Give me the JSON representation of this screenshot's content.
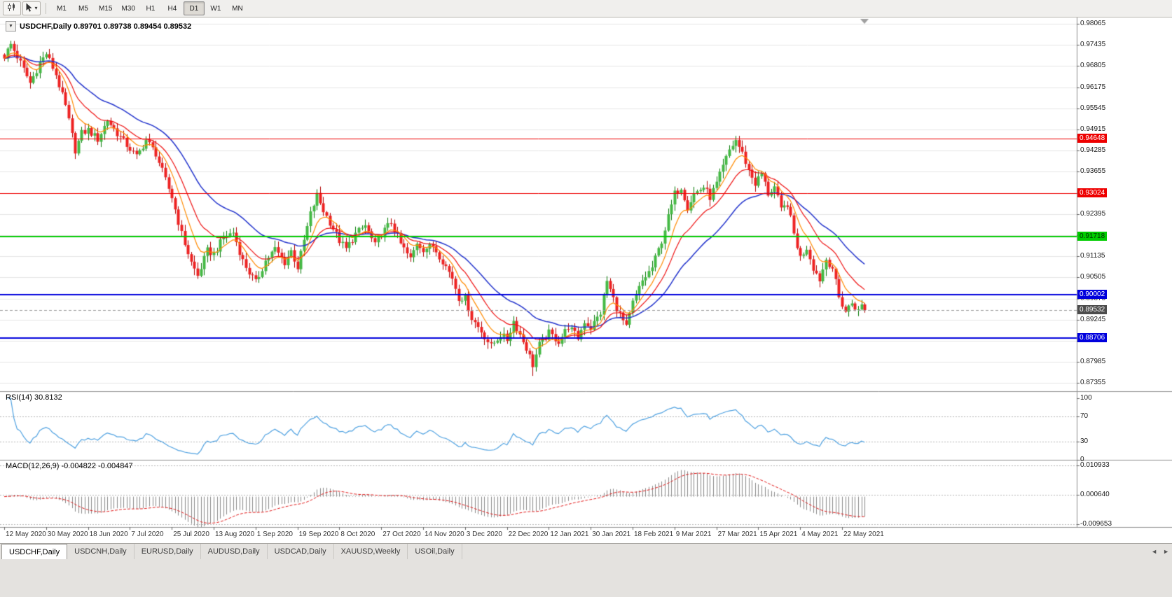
{
  "toolbar": {
    "timeframes": [
      "M1",
      "M5",
      "M15",
      "M30",
      "H1",
      "H4",
      "D1",
      "W1",
      "MN"
    ],
    "active_timeframe": "D1"
  },
  "chart": {
    "quote_text": "USDCHF,Daily 0.89701 0.89738 0.89454 0.89532"
  },
  "chart_data": {
    "type": "candlestick",
    "symbol": "USDCHF",
    "timeframe": "Daily",
    "last_candle": {
      "open": 0.89701,
      "high": 0.89738,
      "low": 0.89454,
      "close": 0.89532
    },
    "current_price": 0.89532,
    "current_price_label": "0.89532",
    "price_top": 0.98065,
    "price_step": 0.0063,
    "y_ticks": [
      "0.98065",
      "0.97435",
      "0.96805",
      "0.96175",
      "0.95545",
      "0.94915",
      "0.94285",
      "0.93655",
      "0.93025",
      "0.92395",
      "0.91765",
      "0.91135",
      "0.90505",
      "0.89875",
      "0.89245",
      "0.88615",
      "0.87985",
      "0.87355"
    ],
    "x_labels": [
      "12 May 2020",
      "30 May 2020",
      "18 Jun 2020",
      "7 Jul 2020",
      "25 Jul 2020",
      "13 Aug 2020",
      "1 Sep 2020",
      "19 Sep 2020",
      "8 Oct 2020",
      "27 Oct 2020",
      "14 Nov 2020",
      "3 Dec 2020",
      "22 Dec 2020",
      "12 Jan 2021",
      "30 Jan 2021",
      "18 Feb 2021",
      "9 Mar 2021",
      "27 Mar 2021",
      "15 Apr 2021",
      "4 May 2021",
      "22 May 2021"
    ],
    "bars_total": 268,
    "anchors": [
      [
        0,
        0.971
      ],
      [
        2,
        0.9745
      ],
      [
        5,
        0.969
      ],
      [
        8,
        0.963
      ],
      [
        11,
        0.969
      ],
      [
        13,
        0.9718
      ],
      [
        16,
        0.9655
      ],
      [
        19,
        0.956
      ],
      [
        22,
        0.943
      ],
      [
        24,
        0.948
      ],
      [
        26,
        0.949
      ],
      [
        29,
        0.9462
      ],
      [
        32,
        0.952
      ],
      [
        35,
        0.948
      ],
      [
        38,
        0.9445
      ],
      [
        41,
        0.941
      ],
      [
        44,
        0.946
      ],
      [
        47,
        0.942
      ],
      [
        50,
        0.934
      ],
      [
        52,
        0.929
      ],
      [
        55,
        0.918
      ],
      [
        58,
        0.9095
      ],
      [
        60,
        0.9055
      ],
      [
        63,
        0.913
      ],
      [
        65,
        0.912
      ],
      [
        68,
        0.917
      ],
      [
        71,
        0.9185
      ],
      [
        74,
        0.91
      ],
      [
        76,
        0.9065
      ],
      [
        78,
        0.9035
      ],
      [
        81,
        0.91
      ],
      [
        84,
        0.9135
      ],
      [
        87,
        0.9095
      ],
      [
        89,
        0.913
      ],
      [
        91,
        0.908
      ],
      [
        93,
        0.916
      ],
      [
        95,
        0.924
      ],
      [
        97,
        0.9295
      ],
      [
        99,
        0.925
      ],
      [
        101,
        0.9215
      ],
      [
        104,
        0.916
      ],
      [
        106,
        0.9135
      ],
      [
        109,
        0.918
      ],
      [
        112,
        0.9205
      ],
      [
        115,
        0.9145
      ],
      [
        117,
        0.918
      ],
      [
        120,
        0.9215
      ],
      [
        123,
        0.915
      ],
      [
        126,
        0.9105
      ],
      [
        128,
        0.9155
      ],
      [
        130,
        0.9135
      ],
      [
        133,
        0.9145
      ],
      [
        136,
        0.91
      ],
      [
        139,
        0.905
      ],
      [
        141,
        0.899
      ],
      [
        143,
        0.899
      ],
      [
        145,
        0.893
      ],
      [
        148,
        0.889
      ],
      [
        151,
        0.8845
      ],
      [
        154,
        0.888
      ],
      [
        156,
        0.8865
      ],
      [
        158,
        0.892
      ],
      [
        160,
        0.888
      ],
      [
        162,
        0.884
      ],
      [
        164,
        0.879
      ],
      [
        166,
        0.885
      ],
      [
        169,
        0.8885
      ],
      [
        172,
        0.886
      ],
      [
        175,
        0.8905
      ],
      [
        178,
        0.887
      ],
      [
        180,
        0.892
      ],
      [
        182,
        0.89
      ],
      [
        185,
        0.8945
      ],
      [
        187,
        0.904
      ],
      [
        190,
        0.896
      ],
      [
        193,
        0.89
      ],
      [
        195,
        0.8975
      ],
      [
        198,
        0.904
      ],
      [
        201,
        0.908
      ],
      [
        204,
        0.916
      ],
      [
        206,
        0.923
      ],
      [
        208,
        0.93
      ],
      [
        210,
        0.932
      ],
      [
        212,
        0.926
      ],
      [
        214,
        0.93
      ],
      [
        217,
        0.932
      ],
      [
        219,
        0.929
      ],
      [
        221,
        0.933
      ],
      [
        223,
        0.938
      ],
      [
        225,
        0.943
      ],
      [
        227,
        0.946
      ],
      [
        229,
        0.942
      ],
      [
        231,
        0.937
      ],
      [
        233,
        0.933
      ],
      [
        235,
        0.936
      ],
      [
        237,
        0.93
      ],
      [
        239,
        0.932
      ],
      [
        241,
        0.925
      ],
      [
        243,
        0.927
      ],
      [
        245,
        0.918
      ],
      [
        247,
        0.911
      ],
      [
        249,
        0.914
      ],
      [
        251,
        0.908
      ],
      [
        253,
        0.9045
      ],
      [
        255,
        0.9105
      ],
      [
        257,
        0.908
      ],
      [
        259,
        0.899
      ],
      [
        261,
        0.895
      ],
      [
        263,
        0.8975
      ],
      [
        265,
        0.895
      ],
      [
        267,
        0.8953
      ]
    ],
    "extremes": {
      "low_bar": 164,
      "low": 0.8757,
      "high_bar": 227,
      "high": 0.9466
    },
    "horizontal_lines": [
      {
        "price": 0.94648,
        "label": "0.94648",
        "color": "#ee0000",
        "width": 1
      },
      {
        "price": 0.93024,
        "label": "0.93024",
        "color": "#ee0000",
        "width": 1
      },
      {
        "price": 0.91718,
        "label": "0.91718",
        "color": "#00cc00",
        "width": 2,
        "text": "#003300"
      },
      {
        "price": 0.90002,
        "label": "0.90002",
        "color": "#0000dd",
        "width": 2
      },
      {
        "price": 0.88706,
        "label": "0.88706",
        "color": "#0000dd",
        "width": 2
      }
    ],
    "moving_averages": [
      {
        "period": 8,
        "color": "#ff8a00",
        "width": 1.2
      },
      {
        "period": 16,
        "color": "#ee1111",
        "width": 1.2
      },
      {
        "period": 34,
        "color": "#2233cc",
        "width": 1.5
      }
    ],
    "rsi": {
      "label": "RSI(14) 30.8132",
      "period": 14,
      "current": 30.8132,
      "color": "#4da0e0",
      "levels": [
        70,
        30
      ],
      "ticks": [
        "100",
        "70",
        "30",
        "0"
      ]
    },
    "macd": {
      "label": "MACD(12,26,9) -0.004822 -0.004847",
      "macd": -0.004822,
      "signal": -0.004847,
      "max": 0.010933,
      "min": -0.009653,
      "ticks": [
        "0.010933",
        "0.000640",
        "-0.009653"
      ]
    }
  },
  "tabs": {
    "items": [
      "USDCHF,Daily",
      "USDCNH,Daily",
      "EURUSD,Daily",
      "AUDUSD,Daily",
      "USDCAD,Daily",
      "XAUUSD,Weekly",
      "USOil,Daily"
    ],
    "active_index": 0
  }
}
